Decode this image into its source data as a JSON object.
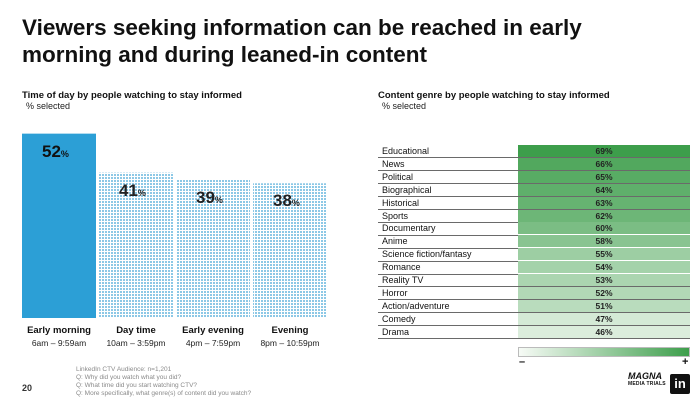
{
  "title": "Viewers seeking information can be reached in early morning and during leaned-in content",
  "page_number": "20",
  "footnote": [
    "LinkedIn CTV Audience: n=1,201",
    "Q: Why did you watch what you did?",
    "Q: What time did you start watching CTV?",
    "Q: More specifically, what genre(s) of content did you watch?"
  ],
  "legend": {
    "minus": "–",
    "plus": "+"
  },
  "logos": {
    "mgn": "MAGNA",
    "mgn_small": "MEDIA TRIALS",
    "linkedin": "in"
  },
  "colors": {
    "highlight_bar": "#2c9fd6",
    "pattern_bar": "#8cc8e6",
    "heat_low": "#f7fbf6",
    "heat_high": "#3d9e4b"
  },
  "chart_data": [
    {
      "type": "bar",
      "title": "Time of day by people watching to stay informed",
      "subtitle": "% selected",
      "categories": [
        "Early morning",
        "Day time",
        "Early evening",
        "Evening"
      ],
      "time_ranges": [
        "6am – 9:59am",
        "10am – 3:59pm",
        "4pm – 7:59pm",
        "8pm – 10:59pm"
      ],
      "values": [
        52,
        41,
        39,
        38
      ],
      "value_labels": [
        {
          "num": "52",
          "unit": "%"
        },
        {
          "num": "41",
          "unit": "%"
        },
        {
          "num": "39",
          "unit": "%"
        },
        {
          "num": "38",
          "unit": "%"
        }
      ],
      "ylim": [
        0,
        55
      ],
      "highlight_index": 0
    },
    {
      "type": "table",
      "title": "Content genre by people watching to stay informed",
      "subtitle": "% selected",
      "rows": [
        {
          "genre": "Educational",
          "value": 69,
          "label": "69%"
        },
        {
          "genre": "News",
          "value": 66,
          "label": "66%"
        },
        {
          "genre": "Political",
          "value": 65,
          "label": "65%"
        },
        {
          "genre": "Biographical",
          "value": 64,
          "label": "64%"
        },
        {
          "genre": "Historical",
          "value": 63,
          "label": "63%"
        },
        {
          "genre": "Sports",
          "value": 62,
          "label": "62%"
        },
        {
          "genre": "Documentary",
          "value": 60,
          "label": "60%"
        },
        {
          "genre": "Anime",
          "value": 58,
          "label": "58%"
        },
        {
          "genre": "Science fiction/fantasy",
          "value": 55,
          "label": "55%"
        },
        {
          "genre": "Romance",
          "value": 54,
          "label": "54%"
        },
        {
          "genre": "Reality TV",
          "value": 53,
          "label": "53%"
        },
        {
          "genre": "Horror",
          "value": 52,
          "label": "52%"
        },
        {
          "genre": "Action/adventure",
          "value": 51,
          "label": "51%"
        },
        {
          "genre": "Comedy",
          "value": 47,
          "label": "47%"
        },
        {
          "genre": "Drama",
          "value": 46,
          "label": "46%"
        }
      ]
    }
  ]
}
